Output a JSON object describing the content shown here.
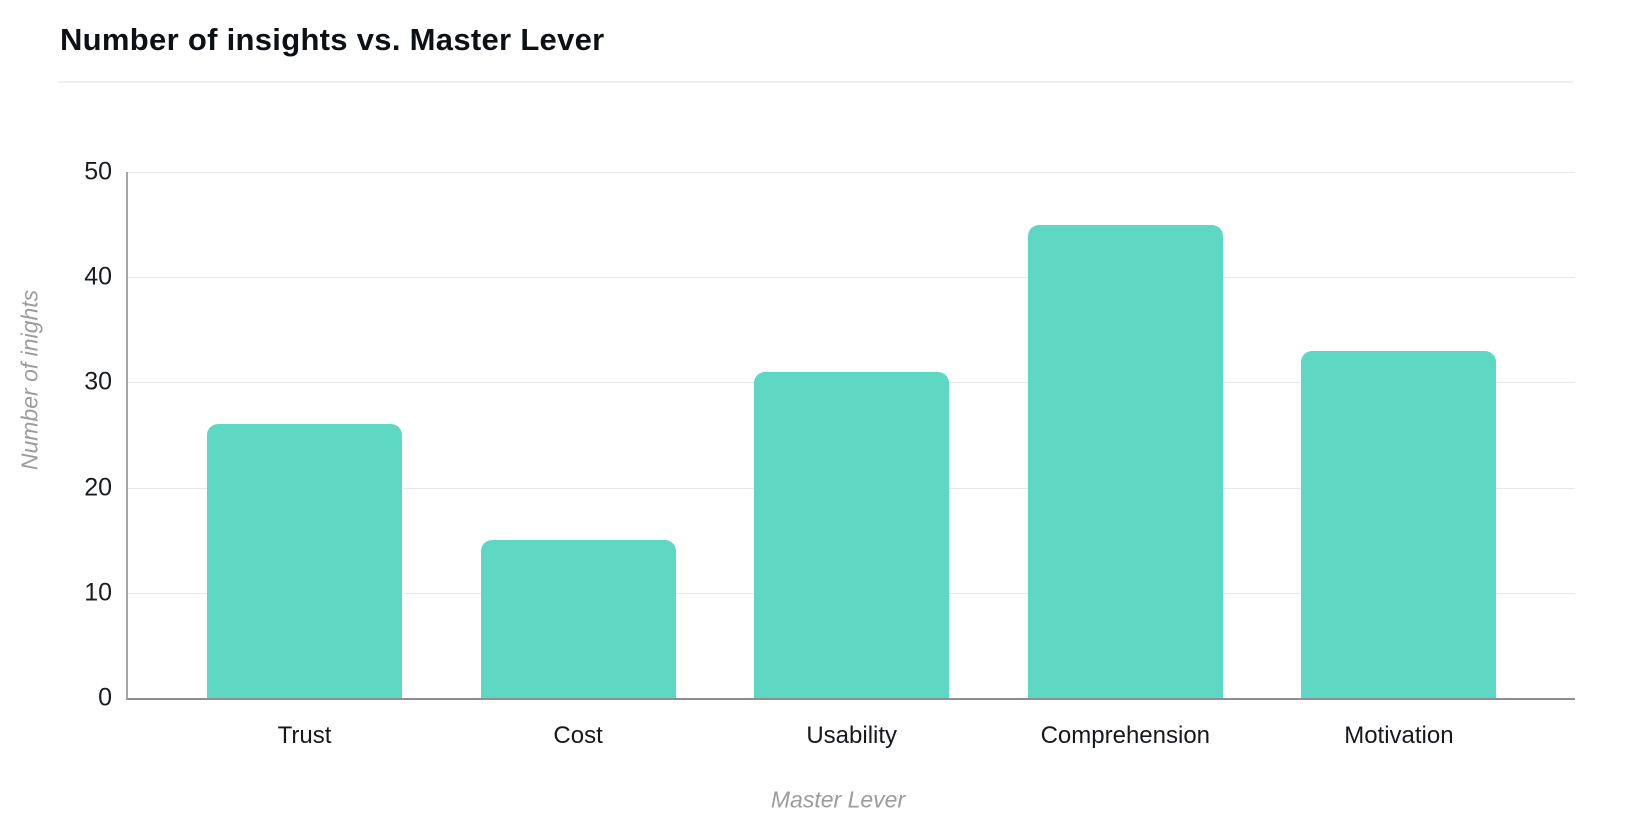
{
  "page": {
    "title": "Number of insights vs. Master Lever"
  },
  "chart_data": {
    "type": "bar",
    "title": "Number of insights vs. Master Lever",
    "categories": [
      "Trust",
      "Cost",
      "Usability",
      "Comprehension",
      "Motivation"
    ],
    "values": [
      26,
      15,
      31,
      45,
      33
    ],
    "xlabel": "Master Lever",
    "ylabel": "Number of inights",
    "ylim": [
      0,
      50
    ],
    "yticks": [
      0,
      10,
      20,
      30,
      40,
      50
    ],
    "grid": true,
    "legend": false,
    "colors": {
      "bar": "#5ED8C3",
      "gridline": "#e8e8e8",
      "axis_line": "#8f8f8f",
      "tick_label": "#191c20",
      "axis_title": "#9c9c9c",
      "title": "#0d1117"
    }
  }
}
